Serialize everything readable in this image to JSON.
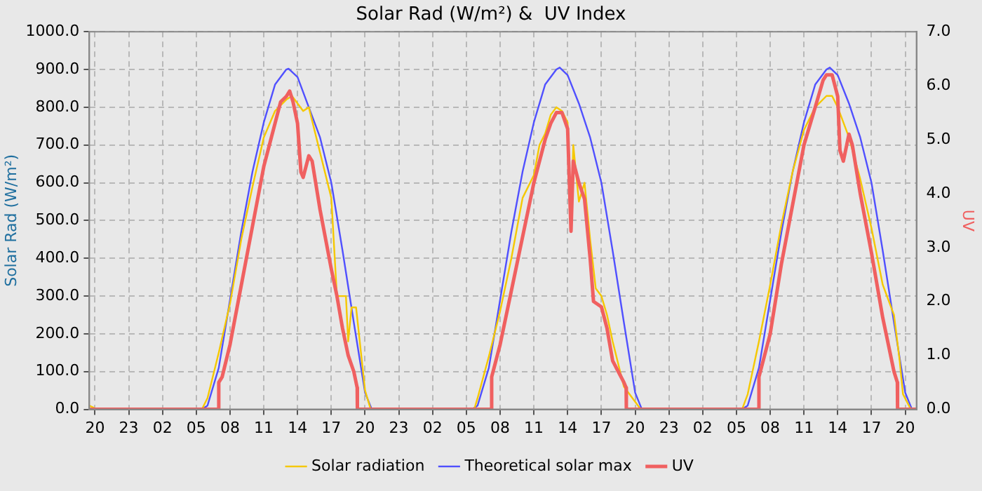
{
  "chart_data": {
    "type": "line",
    "title": "Solar Rad (W/m²) &  UV Index",
    "ylabel": "Solar Rad (W/m²)",
    "y2label": "UV",
    "xlim": [
      "--01-01T19:30",
      "--01-04T21:00"
    ],
    "xticks": [
      {
        "value": "--01-01T20:00",
        "label": "20"
      },
      {
        "value": "--01-01T23:00",
        "label": "23"
      },
      {
        "value": "--01-02T02:00",
        "label": "02"
      },
      {
        "value": "--01-02T05:00",
        "label": "05"
      },
      {
        "value": "--01-02T08:00",
        "label": "08"
      },
      {
        "value": "--01-02T11:00",
        "label": "11"
      },
      {
        "value": "--01-02T14:00",
        "label": "14"
      },
      {
        "value": "--01-02T17:00",
        "label": "17"
      },
      {
        "value": "--01-02T20:00",
        "label": "20"
      },
      {
        "value": "--01-02T23:00",
        "label": "23"
      },
      {
        "value": "--01-03T02:00",
        "label": "02"
      },
      {
        "value": "--01-03T05:00",
        "label": "05"
      },
      {
        "value": "--01-03T08:00",
        "label": "08"
      },
      {
        "value": "--01-03T11:00",
        "label": "11"
      },
      {
        "value": "--01-03T14:00",
        "label": "14"
      },
      {
        "value": "--01-03T17:00",
        "label": "17"
      },
      {
        "value": "--01-03T20:00",
        "label": "20"
      },
      {
        "value": "--01-03T23:00",
        "label": "23"
      },
      {
        "value": "--01-04T02:00",
        "label": "02"
      },
      {
        "value": "--01-04T05:00",
        "label": "05"
      },
      {
        "value": "--01-04T08:00",
        "label": "08"
      },
      {
        "value": "--01-04T11:00",
        "label": "11"
      },
      {
        "value": "--01-04T14:00",
        "label": "14"
      },
      {
        "value": "--01-04T17:00",
        "label": "17"
      },
      {
        "value": "--01-04T20:00",
        "label": "20"
      }
    ],
    "ylim": [
      0,
      1000
    ],
    "yticks": [
      {
        "value": 0,
        "label": "0.0"
      },
      {
        "value": 100,
        "label": "100.0"
      },
      {
        "value": 200,
        "label": "200.0"
      },
      {
        "value": 300,
        "label": "300.0"
      },
      {
        "value": 400,
        "label": "400.0"
      },
      {
        "value": 500,
        "label": "500.0"
      },
      {
        "value": 600,
        "label": "600.0"
      },
      {
        "value": 700,
        "label": "700.0"
      },
      {
        "value": 800,
        "label": "800.0"
      },
      {
        "value": 900,
        "label": "900.0"
      },
      {
        "value": 1000,
        "label": "1000.0"
      }
    ],
    "y2lim": [
      0,
      7
    ],
    "y2ticks": [
      {
        "value": 0,
        "label": "0.0"
      },
      {
        "value": 1,
        "label": "1.0"
      },
      {
        "value": 2,
        "label": "2.0"
      },
      {
        "value": 3,
        "label": "3.0"
      },
      {
        "value": 4,
        "label": "4.0"
      },
      {
        "value": 5,
        "label": "5.0"
      },
      {
        "value": 6,
        "label": "6.0"
      },
      {
        "value": 7,
        "label": "7.0"
      }
    ],
    "grid": true,
    "legend": "bottom",
    "marker": "none",
    "line_style": "solid",
    "series": [
      {
        "name": "Solar radiation",
        "color": "#f5c800",
        "x": [
          "--01-01T19:30",
          "--01-01T20:12",
          "--01-02T05:30",
          "--01-02T06:00",
          "--01-02T07:00",
          "--01-02T08:00",
          "--01-02T09:00",
          "--01-02T10:00",
          "--01-02T11:00",
          "--01-02T12:00",
          "--01-02T13:00",
          "--01-02T13:30",
          "--01-02T14:00",
          "--01-02T14:30",
          "--01-02T15:00",
          "--01-02T16:00",
          "--01-02T17:00",
          "--01-02T17:30",
          "--01-02T18:18",
          "--01-02T18:30",
          "--01-02T18:48",
          "--01-02T19:12",
          "--01-02T20:00",
          "--01-02T20:30",
          "--01-03T05:42",
          "--01-03T06:00",
          "--01-03T07:00",
          "--01-03T08:00",
          "--01-03T09:00",
          "--01-03T10:00",
          "--01-03T11:00",
          "--01-03T11:30",
          "--01-03T12:00",
          "--01-03T12:30",
          "--01-03T13:00",
          "--01-03T13:30",
          "--01-03T14:00",
          "--01-03T14:18",
          "--01-03T14:30",
          "--01-03T15:00",
          "--01-03T15:30",
          "--01-03T16:00",
          "--01-03T16:30",
          "--01-03T17:00",
          "--01-03T17:30",
          "--01-03T18:00",
          "--01-03T18:30",
          "--01-03T19:00",
          "--01-03T20:00",
          "--01-03T20:30",
          "--01-04T05:30",
          "--01-04T06:00",
          "--01-04T07:00",
          "--01-04T08:00",
          "--01-04T09:00",
          "--01-04T10:00",
          "--01-04T11:00",
          "--01-04T12:00",
          "--01-04T13:00",
          "--01-04T13:30",
          "--01-04T14:00",
          "--01-04T15:00",
          "--01-04T16:00",
          "--01-04T17:00",
          "--01-04T18:00",
          "--01-04T19:00",
          "--01-04T19:30",
          "--01-04T19:48",
          "--01-04T20:30",
          "--01-04T21:00"
        ],
        "values": [
          10,
          0,
          0,
          30,
          150,
          280,
          450,
          590,
          720,
          790,
          820,
          830,
          810,
          790,
          800,
          680,
          560,
          300,
          300,
          180,
          270,
          270,
          50,
          0,
          0,
          30,
          140,
          260,
          400,
          560,
          620,
          700,
          730,
          780,
          800,
          790,
          760,
          480,
          700,
          550,
          600,
          450,
          320,
          300,
          250,
          180,
          120,
          60,
          20,
          0,
          0,
          40,
          180,
          330,
          490,
          630,
          740,
          800,
          830,
          830,
          800,
          720,
          610,
          480,
          330,
          250,
          130,
          40,
          0,
          0
        ]
      },
      {
        "name": "Theoretical solar max",
        "color": "#5050ff",
        "x": [
          "--01-01T19:30",
          "--01-02T05:30",
          "--01-02T06:00",
          "--01-02T07:00",
          "--01-02T08:00",
          "--01-02T09:00",
          "--01-02T10:00",
          "--01-02T11:00",
          "--01-02T12:00",
          "--01-02T13:00",
          "--01-02T13:12",
          "--01-02T14:00",
          "--01-02T15:00",
          "--01-02T16:00",
          "--01-02T17:00",
          "--01-02T18:00",
          "--01-02T19:00",
          "--01-02T20:00",
          "--01-02T20:36",
          "--01-03T05:30",
          "--01-03T06:00",
          "--01-03T07:00",
          "--01-03T08:00",
          "--01-03T09:00",
          "--01-03T10:00",
          "--01-03T11:00",
          "--01-03T12:00",
          "--01-03T13:00",
          "--01-03T13:18",
          "--01-03T14:00",
          "--01-03T15:00",
          "--01-03T16:00",
          "--01-03T17:00",
          "--01-03T18:00",
          "--01-03T19:00",
          "--01-03T20:00",
          "--01-03T20:36",
          "--01-04T05:30",
          "--01-04T06:00",
          "--01-04T07:00",
          "--01-04T08:00",
          "--01-04T09:00",
          "--01-04T10:00",
          "--01-04T11:00",
          "--01-04T12:00",
          "--01-04T13:00",
          "--01-04T13:18",
          "--01-04T14:00",
          "--01-04T15:00",
          "--01-04T16:00",
          "--01-04T17:00",
          "--01-04T18:00",
          "--01-04T19:00",
          "--01-04T20:00",
          "--01-04T20:36",
          "--01-04T21:00"
        ],
        "values": [
          0,
          0,
          10,
          110,
          290,
          470,
          630,
          760,
          860,
          900,
          902,
          880,
          800,
          720,
          600,
          420,
          230,
          44,
          0,
          0,
          10,
          110,
          290,
          470,
          630,
          760,
          860,
          900,
          905,
          885,
          810,
          720,
          600,
          420,
          230,
          44,
          0,
          0,
          10,
          110,
          290,
          470,
          630,
          760,
          860,
          900,
          905,
          885,
          810,
          720,
          600,
          420,
          230,
          44,
          0,
          0
        ]
      },
      {
        "name": "UV",
        "color": "#f06060",
        "axis": "y2",
        "x": [
          "--01-01T19:30",
          "--01-02T06:59",
          "--01-02T07:00",
          "--01-02T07:18",
          "--01-02T08:00",
          "--01-02T09:00",
          "--01-02T10:00",
          "--01-02T11:00",
          "--01-02T12:00",
          "--01-02T12:30",
          "--01-02T13:00",
          "--01-02T13:18",
          "--01-02T13:36",
          "--01-02T14:00",
          "--01-02T14:18",
          "--01-02T14:30",
          "--01-02T15:00",
          "--01-02T15:18",
          "--01-02T16:00",
          "--01-02T17:00",
          "--01-02T17:30",
          "--01-02T18:00",
          "--01-02T18:30",
          "--01-02T19:00",
          "--01-02T19:18",
          "--01-02T19:19",
          "--01-03T07:14",
          "--01-03T07:15",
          "--01-03T08:00",
          "--01-03T09:00",
          "--01-03T10:00",
          "--01-03T11:00",
          "--01-03T12:00",
          "--01-03T12:30",
          "--01-03T13:00",
          "--01-03T13:30",
          "--01-03T14:00",
          "--01-03T14:18",
          "--01-03T14:30",
          "--01-03T15:00",
          "--01-03T15:30",
          "--01-03T16:00",
          "--01-03T16:18",
          "--01-03T17:00",
          "--01-03T17:30",
          "--01-03T18:00",
          "--01-03T18:30",
          "--01-03T19:00",
          "--01-03T19:12",
          "--01-03T19:13",
          "--01-04T06:59",
          "--01-04T07:00",
          "--01-04T08:00",
          "--01-04T09:00",
          "--01-04T10:00",
          "--01-04T11:00",
          "--01-04T12:00",
          "--01-04T12:42",
          "--01-04T13:00",
          "--01-04T13:30",
          "--01-04T14:00",
          "--01-04T14:12",
          "--01-04T14:30",
          "--01-04T15:00",
          "--01-04T15:18",
          "--01-04T16:00",
          "--01-04T17:00",
          "--01-04T18:00",
          "--01-04T18:30",
          "--01-04T19:00",
          "--01-04T19:18",
          "--01-04T19:19",
          "--01-04T21:00"
        ],
        "values": [
          0,
          0,
          0.5,
          0.6,
          1.2,
          2.3,
          3.4,
          4.5,
          5.3,
          5.7,
          5.8,
          5.9,
          5.7,
          5.3,
          4.4,
          4.3,
          4.7,
          4.6,
          3.7,
          2.6,
          2.1,
          1.5,
          1.0,
          0.7,
          0.4,
          0,
          0,
          0.6,
          1.2,
          2.2,
          3.2,
          4.2,
          5.0,
          5.3,
          5.5,
          5.5,
          5.2,
          3.3,
          4.6,
          4.2,
          3.9,
          2.8,
          2.0,
          1.9,
          1.5,
          0.9,
          0.7,
          0.5,
          0.4,
          0,
          0,
          0.6,
          1.4,
          2.7,
          3.8,
          4.9,
          5.6,
          6.1,
          6.2,
          6.2,
          5.8,
          4.8,
          4.6,
          5.1,
          4.9,
          4.0,
          2.9,
          1.7,
          1.2,
          0.7,
          0.5,
          0,
          0
        ]
      }
    ]
  }
}
